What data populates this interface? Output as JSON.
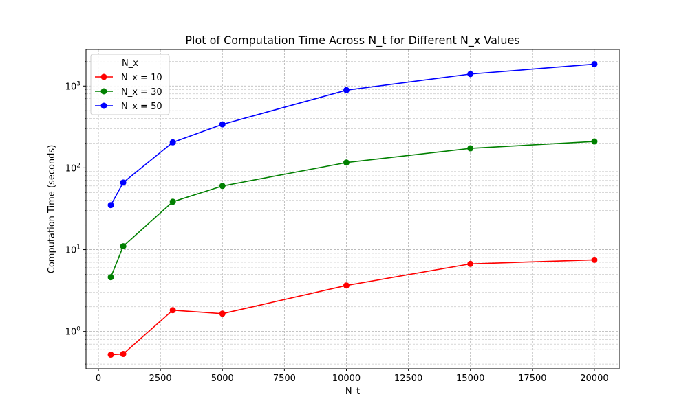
{
  "chart_data": {
    "type": "line",
    "title": "Plot of Computation Time Across N_t for Different N_x Values",
    "xlabel": "N_t",
    "ylabel": "Computation Time (seconds)",
    "yscale": "log",
    "xlim": [
      -500,
      21000
    ],
    "ylim": [
      0.35,
      2800
    ],
    "x_ticks": [
      0,
      2500,
      5000,
      7500,
      10000,
      12500,
      15000,
      17500,
      20000
    ],
    "x_tick_labels": [
      "0",
      "2500",
      "5000",
      "7500",
      "10000",
      "12500",
      "15000",
      "17500",
      "20000"
    ],
    "y_ticks": [
      1,
      10,
      100,
      1000
    ],
    "y_tick_labels": [
      {
        "base": "10",
        "exp": "0"
      },
      {
        "base": "10",
        "exp": "1"
      },
      {
        "base": "10",
        "exp": "2"
      },
      {
        "base": "10",
        "exp": "3"
      }
    ],
    "grid": true,
    "legend": {
      "title": "N_x",
      "position": "top-left"
    },
    "x": [
      500,
      1000,
      3000,
      5000,
      10000,
      15000,
      20000
    ],
    "series": [
      {
        "name": "N_x = 10",
        "color": "#ff0000",
        "values": [
          0.52,
          0.53,
          1.82,
          1.65,
          3.65,
          6.7,
          7.5
        ]
      },
      {
        "name": "N_x = 30",
        "color": "#008000",
        "values": [
          4.6,
          11.0,
          38.5,
          60.0,
          116.0,
          173.0,
          210.0
        ]
      },
      {
        "name": "N_x = 50",
        "color": "#0000ff",
        "values": [
          35.0,
          66.0,
          205.0,
          340.0,
          890.0,
          1400.0,
          1850.0
        ]
      }
    ]
  }
}
